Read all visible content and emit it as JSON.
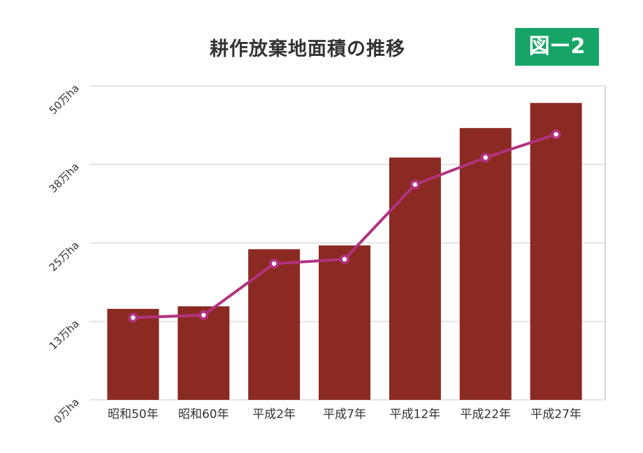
{
  "title": "耕作放棄地面積の推移",
  "badge": "図ー2",
  "colors": {
    "bar": "#8b2a22",
    "line": "#b2337f",
    "badge": "#17a567",
    "grid": "#dcdcdc"
  },
  "chart_data": {
    "type": "bar",
    "categories": [
      "昭和50年",
      "昭和60年",
      "平成2年",
      "平成7年",
      "平成12年",
      "平成22年",
      "平成27年"
    ],
    "series": [
      {
        "type": "bar",
        "values": [
          14.5,
          14.9,
          24.0,
          24.6,
          38.6,
          43.3,
          47.3
        ]
      },
      {
        "type": "line",
        "values": [
          13.1,
          13.5,
          21.7,
          22.4,
          34.3,
          38.6,
          42.3
        ]
      }
    ],
    "ytick_labels": [
      "0万ha",
      "13万ha",
      "25万ha",
      "38万ha",
      "50万ha"
    ],
    "ytick_values": [
      0,
      12.5,
      25,
      37.5,
      50
    ],
    "ylim": [
      0,
      50
    ],
    "grid": true
  }
}
